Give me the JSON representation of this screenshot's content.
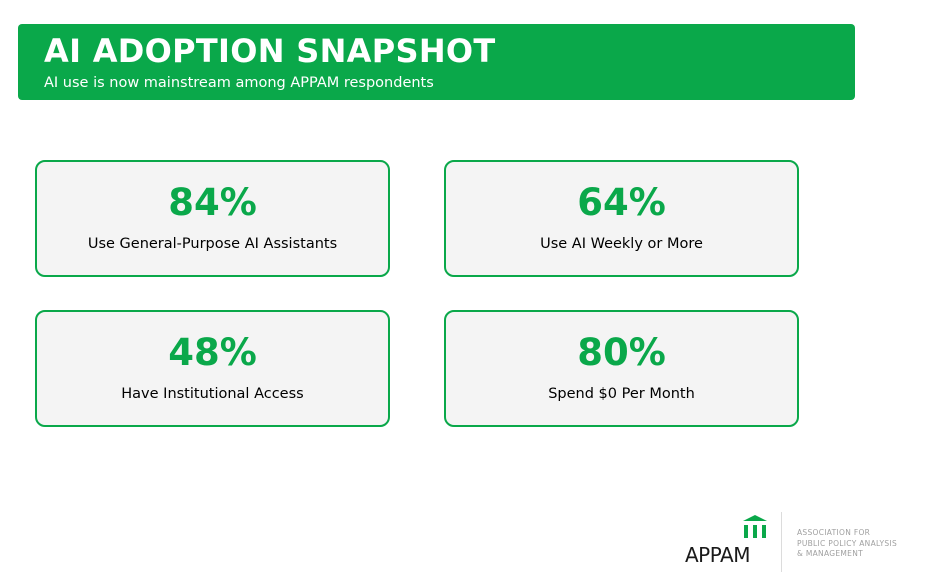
{
  "header": {
    "title": "AI ADOPTION SNAPSHOT",
    "subtitle": "AI use is now mainstream among APPAM respondents"
  },
  "stats": [
    {
      "value": "84%",
      "label": "Use General-Purpose AI Assistants"
    },
    {
      "value": "64%",
      "label": "Use AI Weekly or More"
    },
    {
      "value": "48%",
      "label": "Have Institutional Access"
    },
    {
      "value": "80%",
      "label": "Spend $0 Per Month"
    }
  ],
  "logo": {
    "wordmark": "APPAM",
    "org_lines": [
      "ASSOCIATION FOR",
      "PUBLIC POLICY ANALYSIS",
      "& MANAGEMENT"
    ],
    "icon": "building-columns-icon"
  },
  "colors": {
    "brand_green": "#0aa84a",
    "card_background": "#f4f4f4",
    "text_dark": "#000000"
  }
}
